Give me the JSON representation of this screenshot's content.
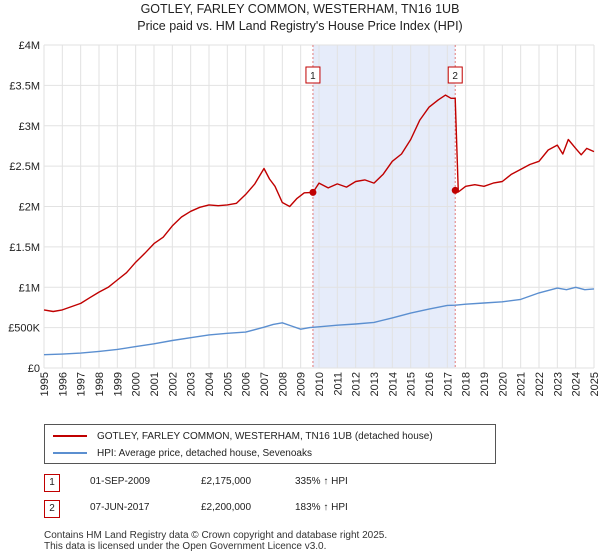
{
  "title": "GOTLEY, FARLEY COMMON, WESTERHAM, TN16 1UB",
  "subtitle": "Price paid vs. HM Land Registry's House Price Index (HPI)",
  "chart_data": {
    "type": "line",
    "xlim": [
      1995,
      2025
    ],
    "ylim": [
      0,
      4000000
    ],
    "y_ticks": [
      {
        "value": 0,
        "label": "£0"
      },
      {
        "value": 500000,
        "label": "£500K"
      },
      {
        "value": 1000000,
        "label": "£1M"
      },
      {
        "value": 1500000,
        "label": "£1.5M"
      },
      {
        "value": 2000000,
        "label": "£2M"
      },
      {
        "value": 2500000,
        "label": "£2.5M"
      },
      {
        "value": 3000000,
        "label": "£3M"
      },
      {
        "value": 3500000,
        "label": "£3.5M"
      },
      {
        "value": 4000000,
        "label": "£4M"
      }
    ],
    "x_ticks": [
      "1995",
      "1996",
      "1997",
      "1998",
      "1999",
      "2000",
      "2001",
      "2002",
      "2003",
      "2004",
      "2005",
      "2006",
      "2007",
      "2008",
      "2009",
      "2010",
      "2011",
      "2012",
      "2013",
      "2014",
      "2015",
      "2016",
      "2017",
      "2018",
      "2019",
      "2020",
      "2021",
      "2022",
      "2023",
      "2024",
      "2025"
    ],
    "series": [
      {
        "name": "GOTLEY, FARLEY COMMON, WESTERHAM, TN16 1UB (detached house)",
        "color": "#c00000",
        "x": [
          1995.0,
          1995.5,
          1996.0,
          1996.5,
          1997.0,
          1997.5,
          1998.0,
          1998.5,
          1999.0,
          1999.5,
          2000.0,
          2000.5,
          2001.0,
          2001.5,
          2002.0,
          2002.5,
          2003.0,
          2003.5,
          2004.0,
          2004.5,
          2005.0,
          2005.5,
          2006.0,
          2006.5,
          2007.0,
          2007.3,
          2007.6,
          2008.0,
          2008.4,
          2008.8,
          2009.2,
          2009.67,
          2010.0,
          2010.5,
          2011.0,
          2011.5,
          2012.0,
          2012.5,
          2013.0,
          2013.5,
          2014.0,
          2014.5,
          2015.0,
          2015.5,
          2016.0,
          2016.5,
          2016.9,
          2017.2,
          2017.43,
          2017.6,
          2018.0,
          2018.5,
          2019.0,
          2019.5,
          2020.0,
          2020.5,
          2021.0,
          2021.5,
          2022.0,
          2022.5,
          2023.0,
          2023.3,
          2023.6,
          2024.0,
          2024.3,
          2024.6,
          2025.0
        ],
        "values": [
          720000,
          700000,
          720000,
          760000,
          800000,
          870000,
          940000,
          1000000,
          1090000,
          1180000,
          1310000,
          1420000,
          1540000,
          1620000,
          1760000,
          1870000,
          1940000,
          1990000,
          2020000,
          2010000,
          2020000,
          2040000,
          2150000,
          2280000,
          2470000,
          2340000,
          2250000,
          2050000,
          2000000,
          2100000,
          2170000,
          2175000,
          2290000,
          2230000,
          2280000,
          2240000,
          2310000,
          2330000,
          2290000,
          2400000,
          2560000,
          2650000,
          2830000,
          3070000,
          3230000,
          3320000,
          3380000,
          3340000,
          3340000,
          2180000,
          2250000,
          2270000,
          2250000,
          2290000,
          2310000,
          2400000,
          2460000,
          2520000,
          2560000,
          2700000,
          2760000,
          2650000,
          2830000,
          2720000,
          2640000,
          2720000,
          2680000
        ]
      },
      {
        "name": "HPI: Average price, detached house, Sevenoaks",
        "color": "#5b8fd0",
        "x": [
          1995.0,
          1996.0,
          1997.0,
          1998.0,
          1999.0,
          2000.0,
          2001.0,
          2002.0,
          2003.0,
          2004.0,
          2005.0,
          2006.0,
          2007.0,
          2007.5,
          2008.0,
          2008.5,
          2009.0,
          2009.5,
          2010.0,
          2011.0,
          2012.0,
          2013.0,
          2014.0,
          2015.0,
          2016.0,
          2017.0,
          2017.43,
          2018.0,
          2019.0,
          2020.0,
          2021.0,
          2022.0,
          2023.0,
          2023.5,
          2024.0,
          2024.5,
          2025.0
        ],
        "values": [
          165000,
          172000,
          185000,
          205000,
          230000,
          265000,
          300000,
          340000,
          375000,
          410000,
          430000,
          445000,
          505000,
          540000,
          560000,
          520000,
          480000,
          500000,
          510000,
          530000,
          545000,
          565000,
          620000,
          680000,
          730000,
          775000,
          778000,
          790000,
          805000,
          820000,
          850000,
          930000,
          990000,
          970000,
          1000000,
          970000,
          980000
        ]
      }
    ],
    "sale_markers": [
      {
        "label": "1",
        "x": 2009.67,
        "y": 2175000
      },
      {
        "label": "2",
        "x": 2017.43,
        "y": 2200000
      }
    ],
    "shaded_range": [
      2009.67,
      2017.43
    ]
  },
  "legend": {
    "entries": [
      {
        "label": "GOTLEY, FARLEY COMMON, WESTERHAM, TN16 1UB (detached house)",
        "color": "#c00000"
      },
      {
        "label": "HPI: Average price, detached house, Sevenoaks",
        "color": "#5b8fd0"
      }
    ]
  },
  "sales": [
    {
      "num": "1",
      "date": "01-SEP-2009",
      "price": "£2,175,000",
      "hpi": "335% ↑ HPI"
    },
    {
      "num": "2",
      "date": "07-JUN-2017",
      "price": "£2,200,000",
      "hpi": "183% ↑ HPI"
    }
  ],
  "footer": {
    "line1": "Contains HM Land Registry data © Crown copyright and database right 2025.",
    "line2": "This data is licensed under the Open Government Licence v3.0."
  }
}
